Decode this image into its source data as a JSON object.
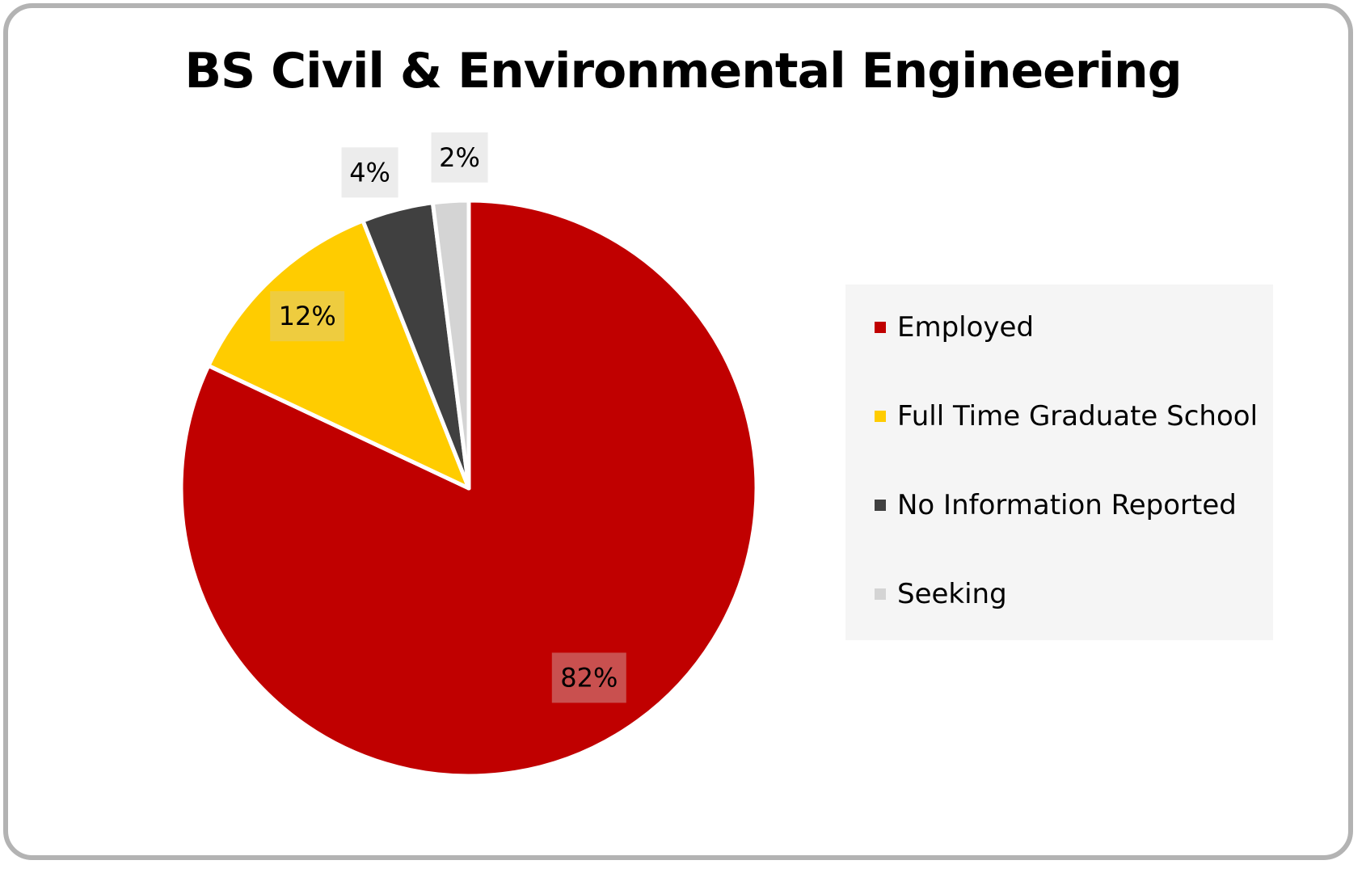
{
  "chart_data": {
    "type": "pie",
    "title": "BS Civil & Environmental Engineering",
    "categories": [
      "Employed",
      "Full Time Graduate School",
      "No Information Reported",
      "Seeking"
    ],
    "values": [
      82,
      12,
      4,
      2
    ],
    "labels": [
      "82%",
      "12%",
      "4%",
      "2%"
    ],
    "colors": [
      "#c00000",
      "#ffcc00",
      "#404040",
      "#d4d4d4"
    ],
    "label_backgrounds": [
      "#c9504f",
      "#eecc3f",
      "#ececec",
      "#ececec"
    ],
    "unit": "%",
    "legend_position": "right",
    "start_angle": "12 o'clock",
    "direction": "clockwise"
  }
}
